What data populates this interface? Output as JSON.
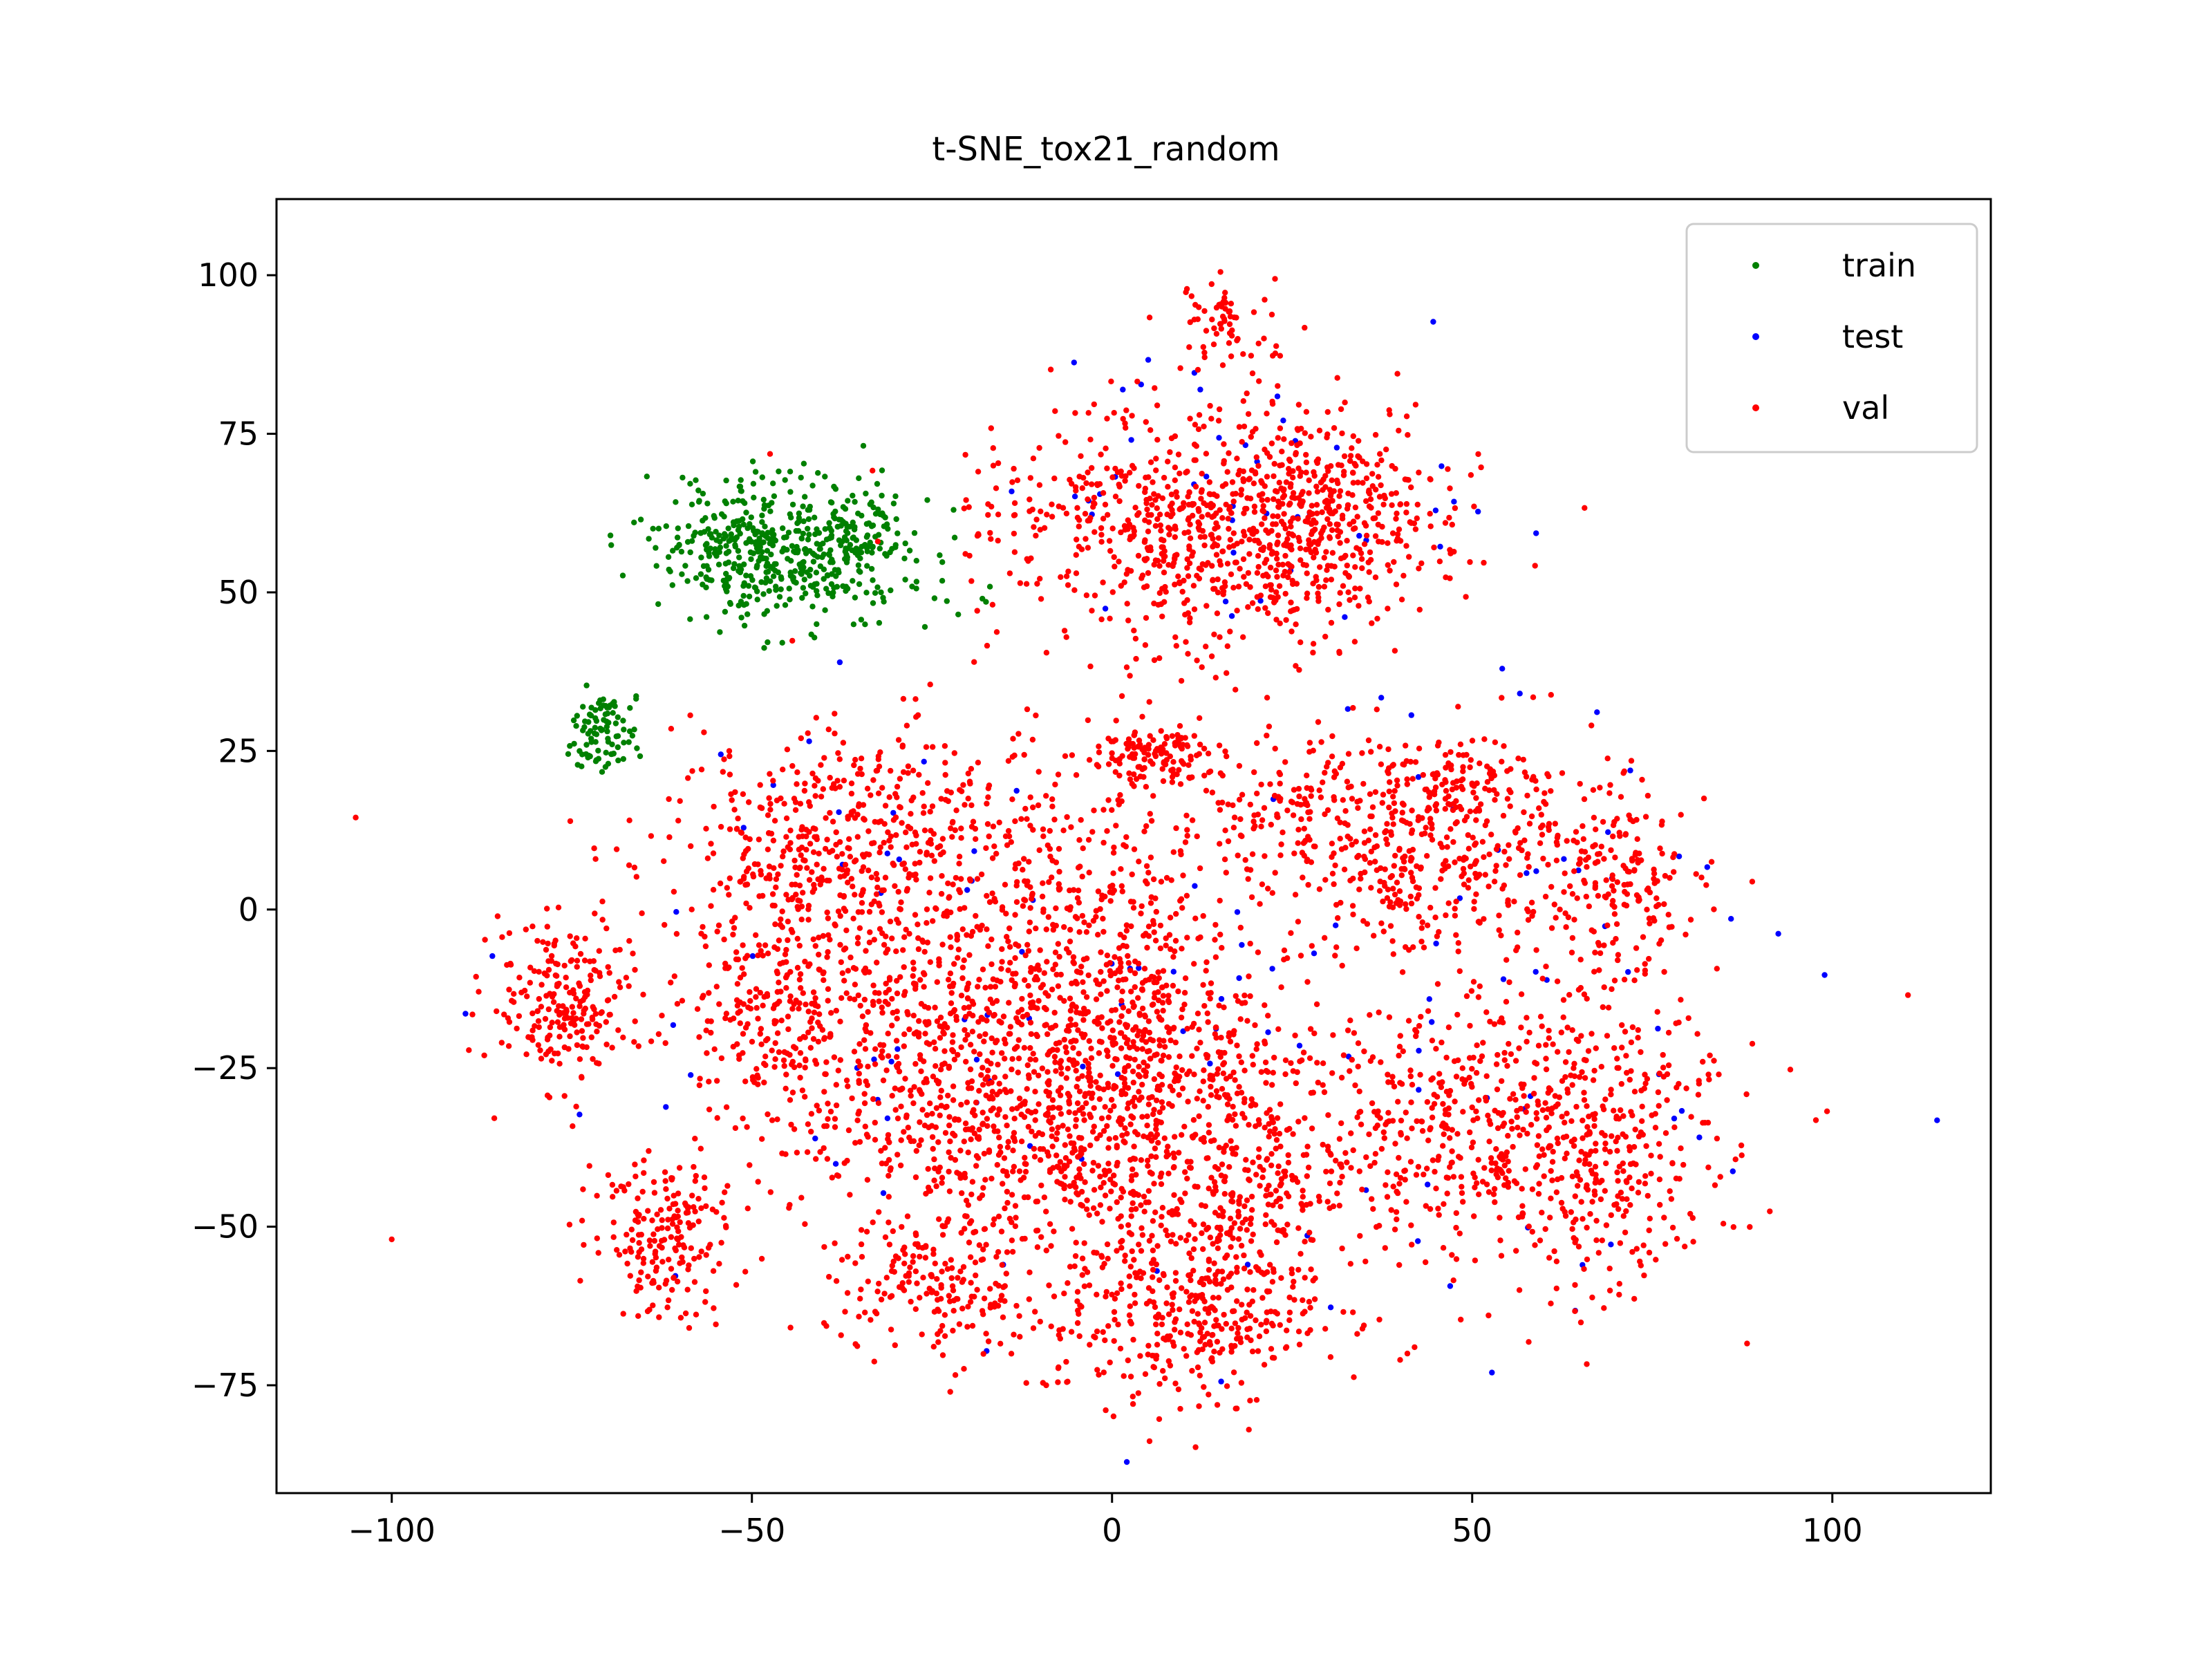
{
  "chart_data": {
    "type": "scatter",
    "title": "t-SNE_tox21_random",
    "xlabel": "",
    "ylabel": "",
    "xlim": [
      -116,
      122
    ],
    "ylim": [
      -92,
      112
    ],
    "xticks": [
      -100,
      -50,
      0,
      50,
      100
    ],
    "yticks": [
      -75,
      -50,
      -25,
      0,
      25,
      50,
      75,
      100
    ],
    "xtick_labels": [
      "−100",
      "−50",
      "0",
      "50",
      "100"
    ],
    "ytick_labels": [
      "−75",
      "−50",
      "−25",
      "0",
      "25",
      "50",
      "75",
      "100"
    ],
    "grid": false,
    "legend_position": "upper right",
    "series": [
      {
        "name": "train",
        "color": "#008000",
        "count": 650,
        "clusters": [
          {
            "cx": -52,
            "cy": 58,
            "sx": 6,
            "sy": 5,
            "w": 0.4
          },
          {
            "cx": -38,
            "cy": 57,
            "sx": 6,
            "sy": 5,
            "w": 0.38
          },
          {
            "cx": -70.5,
            "cy": 28,
            "sx": 2.2,
            "sy": 3,
            "w": 0.14
          },
          {
            "cx": -46,
            "cy": 50,
            "sx": 5,
            "sy": 3,
            "w": 0.08
          }
        ],
        "extra_points": [
          [
            -22,
            63
          ],
          [
            -18,
            49
          ],
          [
            -17.5,
            48.5
          ]
        ]
      },
      {
        "name": "test",
        "color": "#0000ff",
        "count": 170,
        "clusters": [
          {
            "cx": 20,
            "cy": 65,
            "sx": 18,
            "sy": 12,
            "w": 0.25
          },
          {
            "cx": -20,
            "cy": -20,
            "sx": 30,
            "sy": 25,
            "w": 0.4
          },
          {
            "cx": 55,
            "cy": -15,
            "sx": 20,
            "sy": 25,
            "w": 0.35
          }
        ],
        "extra_points": []
      },
      {
        "name": "val",
        "color": "#ff0000",
        "count": 6400,
        "clusters": [
          {
            "cx": 10,
            "cy": 60,
            "sx": 15,
            "sy": 10,
            "w": 0.1
          },
          {
            "cx": 28,
            "cy": 62,
            "sx": 9,
            "sy": 8,
            "w": 0.06
          },
          {
            "cx": 14,
            "cy": 92,
            "sx": 4,
            "sy": 4,
            "w": 0.01
          },
          {
            "cx": 5,
            "cy": 24,
            "sx": 5,
            "sy": 3,
            "w": 0.02
          },
          {
            "cx": -40,
            "cy": 10,
            "sx": 12,
            "sy": 10,
            "w": 0.07
          },
          {
            "cx": -20,
            "cy": -25,
            "sx": 14,
            "sy": 14,
            "w": 0.12
          },
          {
            "cx": 5,
            "cy": -20,
            "sx": 10,
            "sy": 12,
            "w": 0.07
          },
          {
            "cx": 45,
            "cy": 8,
            "sx": 8,
            "sy": 8,
            "w": 0.05
          },
          {
            "cx": 65,
            "cy": -35,
            "sx": 10,
            "sy": 12,
            "w": 0.08
          },
          {
            "cx": 70,
            "cy": 5,
            "sx": 6,
            "sy": 8,
            "w": 0.03
          },
          {
            "cx": -76,
            "cy": -15,
            "sx": 5,
            "sy": 6,
            "w": 0.035
          },
          {
            "cx": -62,
            "cy": -52,
            "sx": 5,
            "sy": 6,
            "w": 0.03
          },
          {
            "cx": 10,
            "cy": -65,
            "sx": 10,
            "sy": 7,
            "w": 0.05
          },
          {
            "cx": -25,
            "cy": -60,
            "sx": 7,
            "sy": 6,
            "w": 0.025
          },
          {
            "cx": 40,
            "cy": -35,
            "sx": 10,
            "sy": 10,
            "w": 0.04
          },
          {
            "cx": 25,
            "cy": 15,
            "sx": 10,
            "sy": 6,
            "w": 0.03
          },
          {
            "cx": -45,
            "cy": -15,
            "sx": 8,
            "sy": 10,
            "w": 0.04
          },
          {
            "cx": 0,
            "cy": -40,
            "sx": 12,
            "sy": 12,
            "w": 0.06
          },
          {
            "cx": 50,
            "cy": 20,
            "sx": 10,
            "sy": 4,
            "w": 0.015
          },
          {
            "cx": 20,
            "cy": -45,
            "sx": 6,
            "sy": 10,
            "w": 0.03
          },
          {
            "cx": -10,
            "cy": 5,
            "sx": 10,
            "sy": 10,
            "w": 0.04
          }
        ],
        "extra_points": [
          [
            -105,
            14.5
          ],
          [
            -100,
            -52
          ],
          [
            110.5,
            -13.5
          ],
          [
            41,
            -70
          ],
          [
            40,
            -71
          ],
          [
            42,
            -69
          ],
          [
            83,
            -23
          ],
          [
            82,
            -24
          ],
          [
            19,
            -82
          ]
        ]
      }
    ]
  }
}
